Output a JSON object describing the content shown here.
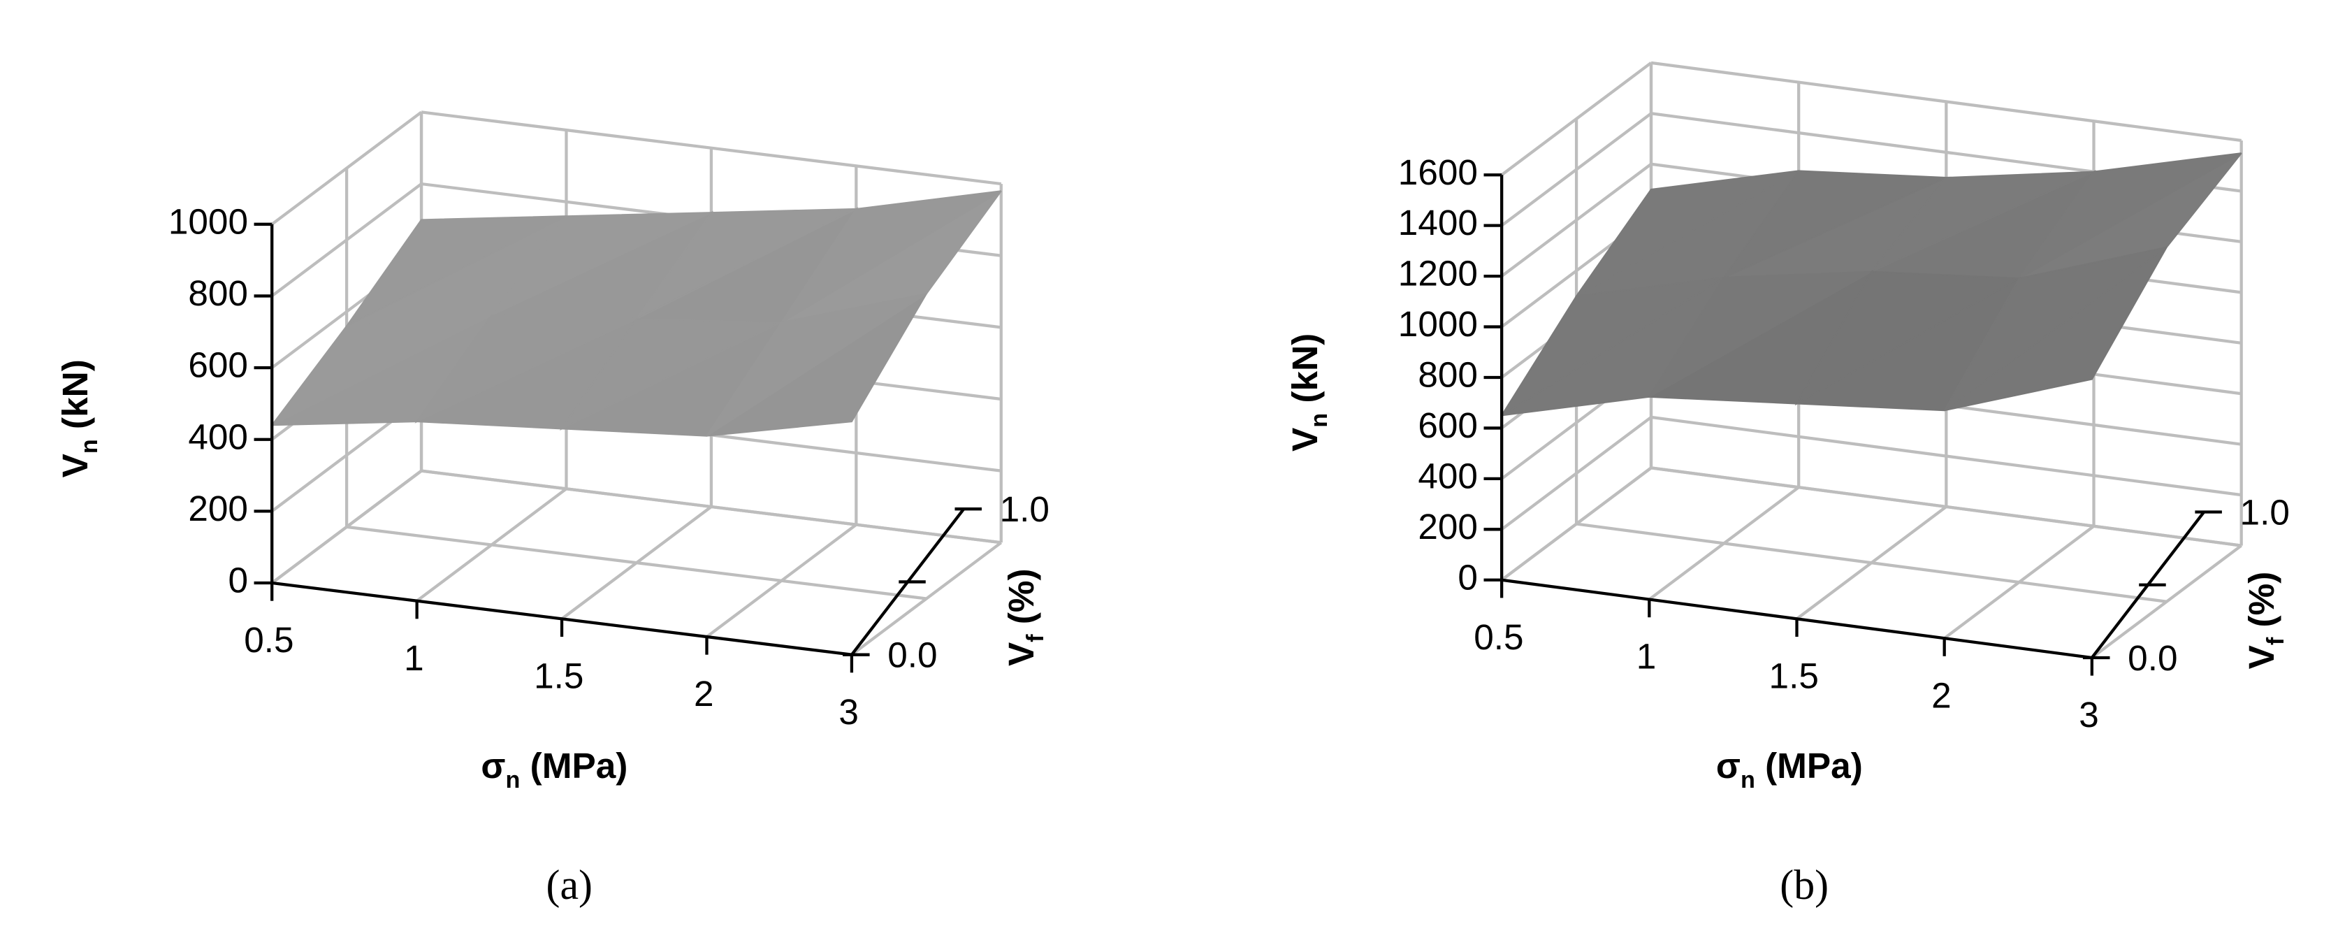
{
  "chart_data": [
    {
      "type": "surface",
      "panel_label": "(a)",
      "color": "#9a9a9a",
      "categories": [
        "0.5",
        "1",
        "1.5",
        "2",
        "3"
      ],
      "depth_categories": [
        "0.0",
        null,
        "1.0"
      ],
      "z": [
        [
          440,
          500,
          530,
          560,
          650
        ],
        [
          560,
          640,
          680,
          720,
          850
        ],
        [
          700,
          760,
          820,
          880,
          980
        ]
      ],
      "zlim": [
        0,
        1000
      ],
      "zticks": [
        0,
        200,
        400,
        600,
        800,
        1000
      ],
      "x_label": [
        "σ",
        "n",
        " (MPa)"
      ],
      "depth_label": [
        "V",
        "f",
        " (%)"
      ],
      "z_label": [
        "V",
        "n",
        " (kN)"
      ],
      "grid": true
    },
    {
      "type": "surface",
      "panel_label": "(b)",
      "color": "#7a7a7a",
      "categories": [
        "0.5",
        "1",
        "1.5",
        "2",
        "3"
      ],
      "depth_categories": [
        "0.0",
        null,
        "1.0"
      ],
      "z": [
        [
          650,
          800,
          850,
          900,
          1100
        ],
        [
          900,
          1050,
          1150,
          1200,
          1400
        ],
        [
          1100,
          1250,
          1300,
          1400,
          1550
        ]
      ],
      "zlim": [
        0,
        1600
      ],
      "zticks": [
        0,
        200,
        400,
        600,
        800,
        1000,
        1200,
        1400,
        1600
      ],
      "x_label": [
        "σ",
        "n",
        " (MPa)"
      ],
      "depth_label": [
        "V",
        "f",
        " (%)"
      ],
      "z_label": [
        "V",
        "n",
        " (kN)"
      ],
      "grid": true
    }
  ]
}
